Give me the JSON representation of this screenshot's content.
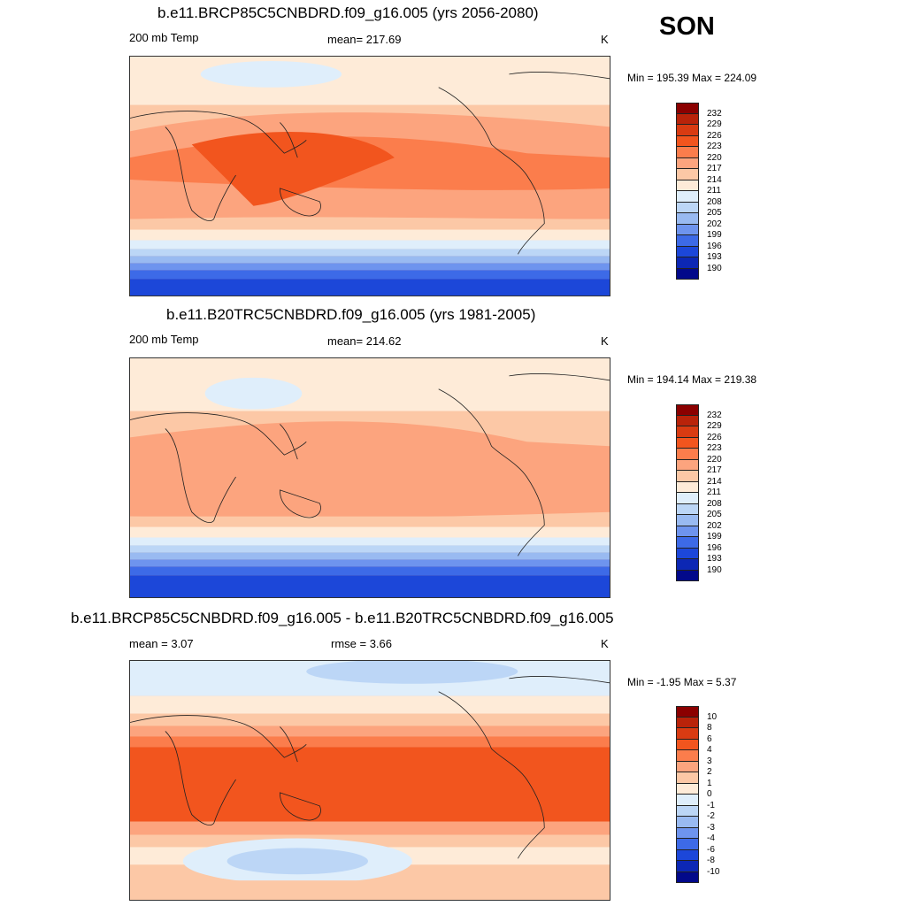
{
  "season": "SON",
  "panels": [
    {
      "title": "b.e11.BRCP85C5CNBDRD.f09_g16.005 (yrs 2056-2080)",
      "left_label": "200 mb Temp",
      "center_label": "mean= 217.69",
      "units": "K",
      "minmax": "Min = 195.39 Max = 224.09"
    },
    {
      "title": "b.e11.B20TRC5CNBDRD.f09_g16.005 (yrs 1981-2005)",
      "left_label": "200 mb Temp",
      "center_label": "mean= 214.62",
      "units": "K",
      "minmax": "Min = 194.14 Max = 219.38"
    },
    {
      "title": "b.e11.BRCP85C5CNBDRD.f09_g16.005 - b.e11.B20TRC5CNBDRD.f09_g16.005",
      "left_label": "mean =   3.07",
      "center_label": "rmse =   3.66",
      "units": "K",
      "minmax": "Min =  -1.95 Max =   5.37"
    }
  ],
  "colorbars": {
    "abs": {
      "colors": [
        "#8b0000",
        "#b9230a",
        "#d93b12",
        "#f2551e",
        "#fb7d4c",
        "#fca47e",
        "#fcc8a6",
        "#feebd8",
        "#dfeefb",
        "#bcd6f6",
        "#99baf1",
        "#6e94ee",
        "#3d6ae7",
        "#1c47d9",
        "#0c27b4",
        "#02098a"
      ],
      "labels": [
        "232",
        "229",
        "226",
        "223",
        "220",
        "217",
        "214",
        "211",
        "208",
        "205",
        "202",
        "199",
        "196",
        "193",
        "190"
      ]
    },
    "diff": {
      "colors": [
        "#8b0000",
        "#b9230a",
        "#d93b12",
        "#f2551e",
        "#fb7d4c",
        "#fca47e",
        "#fcc8a6",
        "#feebd8",
        "#dfeefb",
        "#bcd6f6",
        "#99baf1",
        "#6e94ee",
        "#3d6ae7",
        "#1c47d9",
        "#0c27b4",
        "#02098a"
      ],
      "labels": [
        "10",
        "8",
        "6",
        "4",
        "3",
        "2",
        "1",
        "0",
        "-1",
        "-2",
        "-3",
        "-4",
        "-6",
        "-8",
        "-10"
      ]
    }
  }
}
